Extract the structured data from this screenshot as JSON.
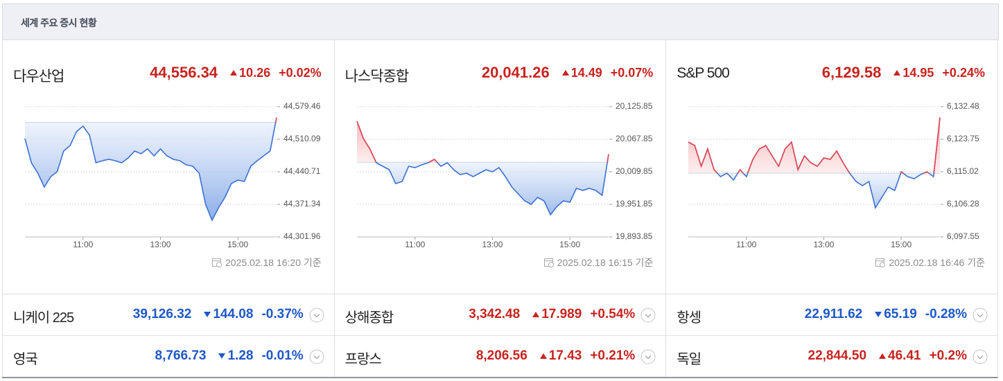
{
  "header": {
    "title": "세계 주요 증시 현황"
  },
  "colors": {
    "up": "#c8231f",
    "down": "#1f57c7",
    "line_up": "#e8434a",
    "line_down": "#3a70d3"
  },
  "chart_data": [
    {
      "type": "line",
      "name": "다우산업",
      "price": "44,556.34",
      "direction": "up",
      "change": "10.26",
      "change_pct": "+0.02%",
      "timestamp": "2025.02.18 16:20 기준",
      "reference": 44546.08,
      "x": [
        570,
        580,
        590,
        600,
        610,
        620,
        630,
        640,
        650,
        660,
        670,
        680,
        690,
        700,
        710,
        720,
        730,
        740,
        750,
        760,
        770,
        780,
        790,
        800,
        810,
        820,
        830,
        840,
        850,
        860,
        870,
        880,
        890,
        900,
        910,
        920,
        930,
        940,
        950,
        960
      ],
      "values": [
        44511.6,
        44459.9,
        44437.8,
        44408.3,
        44430.4,
        44440.8,
        44485.0,
        44496.8,
        44526.4,
        44538.2,
        44519.0,
        44459.9,
        44464.4,
        44467.3,
        44464.4,
        44459.9,
        44470.3,
        44485.0,
        44479.1,
        44489.5,
        44474.7,
        44489.5,
        44474.7,
        44467.3,
        44464.4,
        44455.5,
        44452.6,
        44437.8,
        44371.4,
        44337.4,
        44364.0,
        44386.1,
        44415.7,
        44423.0,
        44420.1,
        44452.6,
        44464.4,
        44474.7,
        44485.0,
        44556.3
      ],
      "xlim": [
        570,
        960
      ],
      "xticks": [
        {
          "value": 660,
          "label": "11:00"
        },
        {
          "value": 780,
          "label": "13:00"
        },
        {
          "value": 900,
          "label": "15:00"
        }
      ],
      "ylim": [
        44301.96,
        44579.46
      ],
      "yticks": [
        {
          "value": 44579.46,
          "label": "44,579.46"
        },
        {
          "value": 44510.09,
          "label": "44,510.09"
        },
        {
          "value": 44440.71,
          "label": "44,440.71"
        },
        {
          "value": 44371.34,
          "label": "44,371.34"
        },
        {
          "value": 44301.96,
          "label": "44,301.96"
        }
      ],
      "grid": true
    },
    {
      "type": "line",
      "name": "나스닥종합",
      "price": "20,041.26",
      "direction": "up",
      "change": "14.49",
      "change_pct": "+0.07%",
      "timestamp": "2025.02.18 16:15 기준",
      "reference": 20026.77,
      "x": [
        570,
        580,
        590,
        600,
        610,
        620,
        630,
        640,
        650,
        660,
        670,
        680,
        690,
        700,
        710,
        720,
        730,
        740,
        750,
        760,
        770,
        780,
        790,
        800,
        810,
        820,
        830,
        840,
        850,
        860,
        870,
        880,
        890,
        900,
        910,
        920,
        930,
        940,
        950,
        960
      ],
      "values": [
        20099.9,
        20069.1,
        20050.6,
        20025.9,
        20019.7,
        20013.6,
        19988.9,
        19992.6,
        20019.7,
        20017.3,
        20022.2,
        20025.9,
        20032.1,
        20019.7,
        20025.9,
        20013.6,
        20004.9,
        20007.4,
        20001.2,
        20007.4,
        20013.6,
        20009.9,
        20017.3,
        20001.2,
        19982.7,
        19970.4,
        19958.0,
        19951.9,
        19964.2,
        19958.0,
        19933.3,
        19948.2,
        19958.0,
        19955.6,
        19980.3,
        19976.6,
        19980.3,
        19976.6,
        19967.9,
        20041.3
      ],
      "xlim": [
        570,
        960
      ],
      "xticks": [
        {
          "value": 660,
          "label": "11:00"
        },
        {
          "value": 780,
          "label": "13:00"
        },
        {
          "value": 900,
          "label": "15:00"
        }
      ],
      "ylim": [
        19893.85,
        20125.85
      ],
      "yticks": [
        {
          "value": 20125.85,
          "label": "20,125.85"
        },
        {
          "value": 20067.85,
          "label": "20,067.85"
        },
        {
          "value": 20009.85,
          "label": "20,009.85"
        },
        {
          "value": 19951.85,
          "label": "19,951.85"
        },
        {
          "value": 19893.85,
          "label": "19,893.85"
        }
      ],
      "grid": true
    },
    {
      "type": "line",
      "name": "S&P 500",
      "price": "6,129.58",
      "direction": "up",
      "change": "14.95",
      "change_pct": "+0.24%",
      "timestamp": "2025.02.18 16:46 기준",
      "reference": 6114.63,
      "x": [
        570,
        580,
        590,
        600,
        610,
        620,
        630,
        640,
        650,
        660,
        670,
        680,
        690,
        700,
        710,
        720,
        730,
        740,
        750,
        760,
        770,
        780,
        790,
        800,
        810,
        820,
        830,
        840,
        850,
        860,
        870,
        880,
        890,
        900,
        910,
        920,
        930,
        940,
        950,
        960
      ],
      "values": [
        6123.0,
        6122.08,
        6116.5,
        6121.15,
        6115.57,
        6113.71,
        6114.64,
        6112.79,
        6115.57,
        6113.71,
        6118.36,
        6121.15,
        6122.08,
        6119.29,
        6116.5,
        6121.15,
        6123.0,
        6115.57,
        6119.29,
        6117.43,
        6116.5,
        6118.73,
        6118.36,
        6120.59,
        6117.43,
        6114.64,
        6112.41,
        6111.3,
        6112.41,
        6105.35,
        6108.14,
        6110.93,
        6110.0,
        6115.01,
        6113.71,
        6113.16,
        6114.27,
        6115.01,
        6113.71,
        6129.58
      ],
      "xlim": [
        570,
        960
      ],
      "xticks": [
        {
          "value": 660,
          "label": "11:00"
        },
        {
          "value": 780,
          "label": "13:00"
        },
        {
          "value": 900,
          "label": "15:00"
        }
      ],
      "ylim": [
        6097.55,
        6132.48
      ],
      "yticks": [
        {
          "value": 6132.48,
          "label": "6,132.48"
        },
        {
          "value": 6123.75,
          "label": "6,123.75"
        },
        {
          "value": 6115.02,
          "label": "6,115.02"
        },
        {
          "value": 6106.28,
          "label": "6,106.28"
        },
        {
          "value": 6097.55,
          "label": "6,097.55"
        }
      ],
      "grid": true
    }
  ],
  "rows": [
    [
      {
        "name": "니케이 225",
        "price": "39,126.32",
        "direction": "down",
        "change": "144.08",
        "change_pct": "-0.37%"
      },
      {
        "name": "상해종합",
        "price": "3,342.48",
        "direction": "up",
        "change": "17.989",
        "change_pct": "+0.54%"
      },
      {
        "name": "항셍",
        "price": "22,911.62",
        "direction": "down",
        "change": "65.19",
        "change_pct": "-0.28%"
      }
    ],
    [
      {
        "name": "영국",
        "price": "8,766.73",
        "direction": "down",
        "change": "1.28",
        "change_pct": "-0.01%"
      },
      {
        "name": "프랑스",
        "price": "8,206.56",
        "direction": "up",
        "change": "17.43",
        "change_pct": "+0.21%"
      },
      {
        "name": "독일",
        "price": "22,844.50",
        "direction": "up",
        "change": "46.41",
        "change_pct": "+0.2%"
      }
    ]
  ]
}
